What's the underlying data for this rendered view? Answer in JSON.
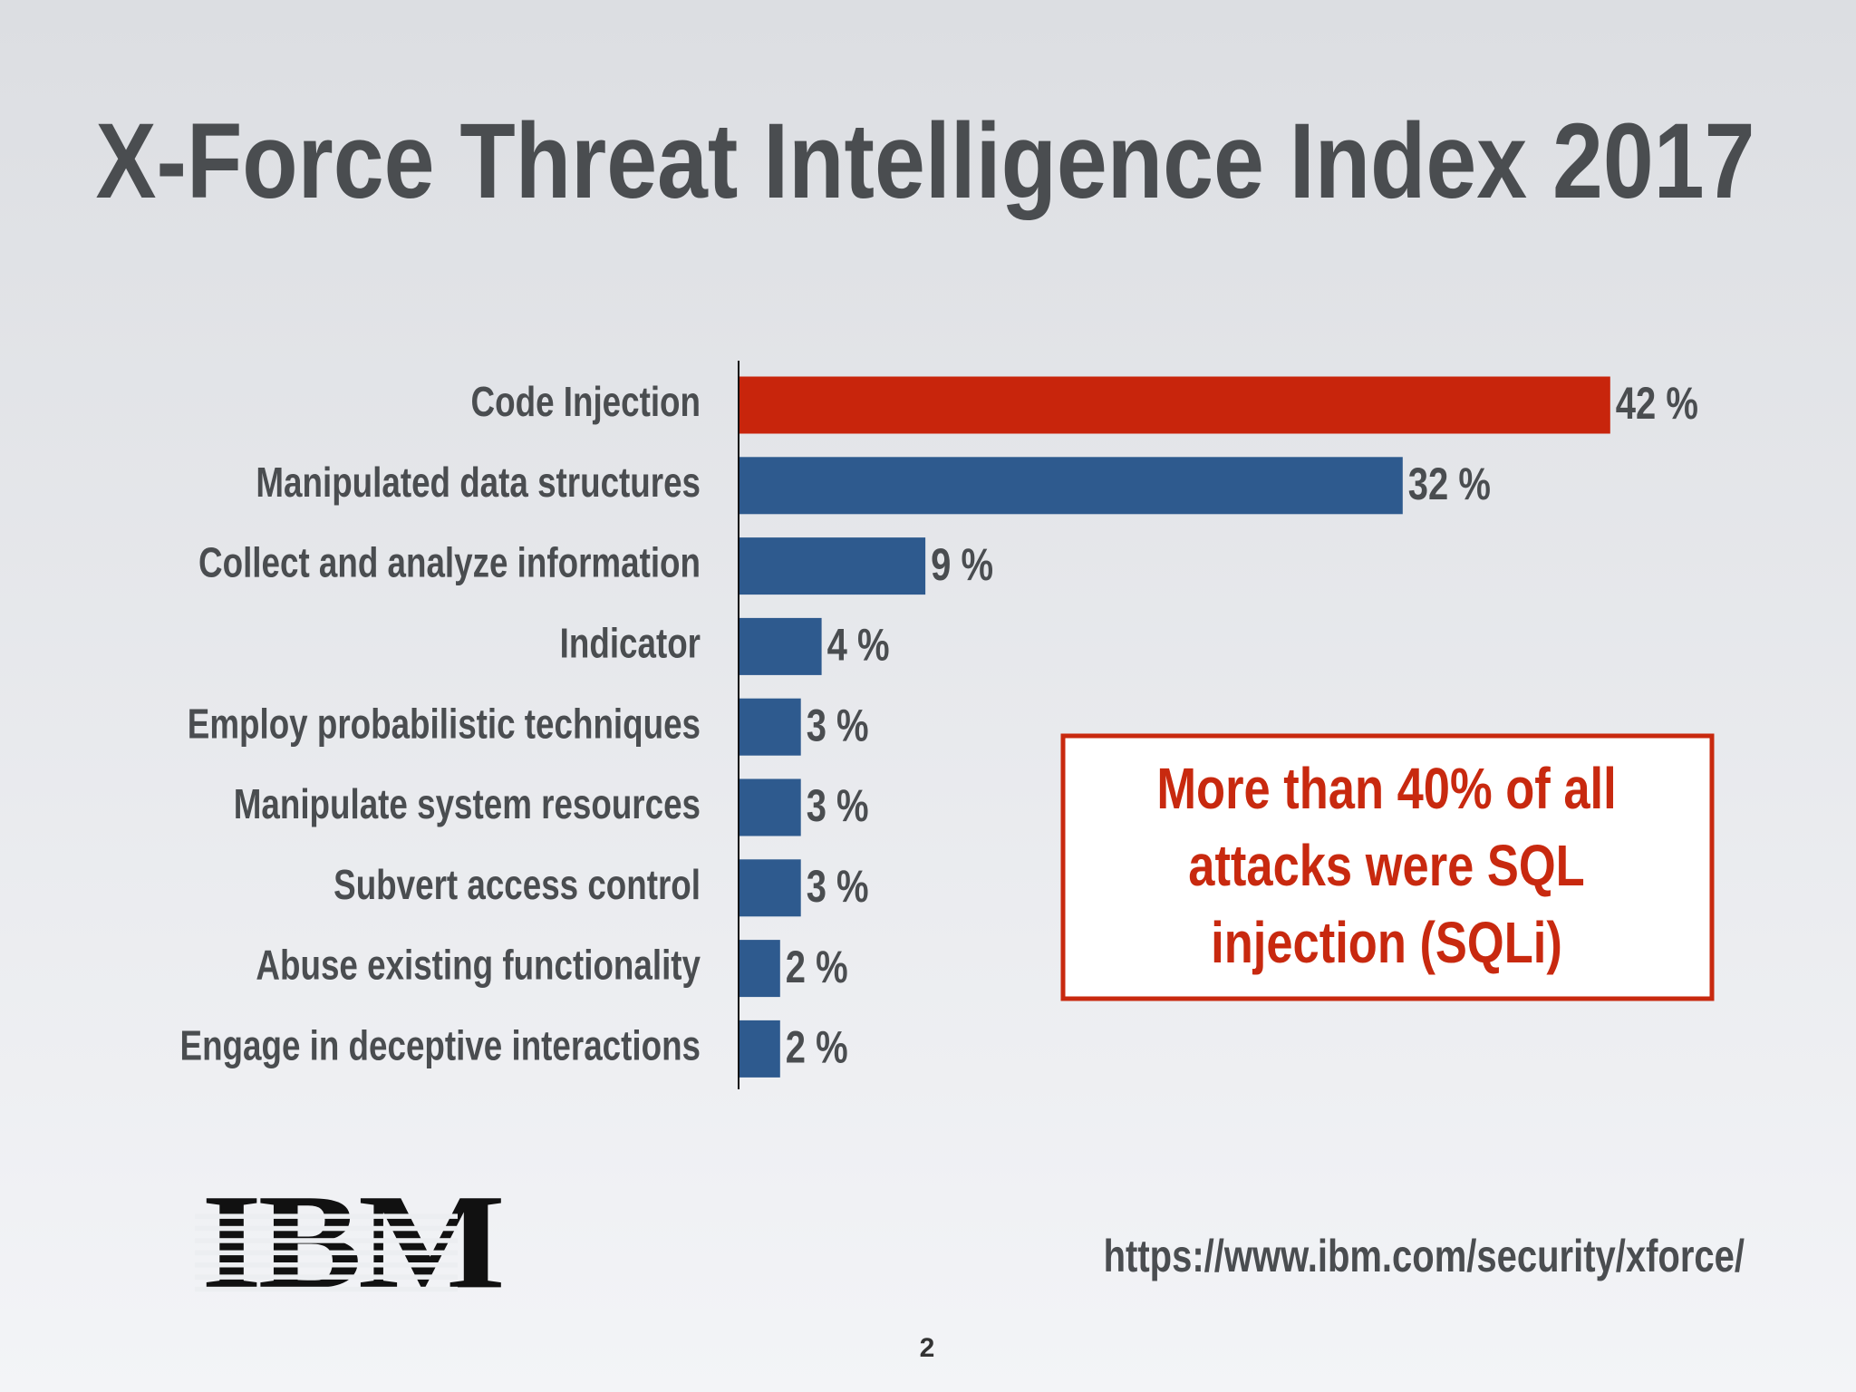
{
  "chart_data": {
    "type": "hbar",
    "title": "X-Force Threat Intelligence Index 2017",
    "categories": [
      "Code Injection",
      "Manipulated data structures",
      "Collect and analyze information",
      "Indicator",
      "Employ probabilistic techniques",
      "Manipulate system resources",
      "Subvert access control",
      "Abuse existing functionality",
      "Engage in deceptive interactions"
    ],
    "values": [
      42,
      32,
      9,
      4,
      3,
      3,
      3,
      2,
      2
    ],
    "value_labels": [
      "42 %",
      "32 %",
      "9 %",
      "4 %",
      "3 %",
      "3 %",
      "3 %",
      "2 %",
      "2 %"
    ],
    "colors": [
      "#c8250c",
      "#2e5a8e",
      "#2e5a8e",
      "#2e5a8e",
      "#2e5a8e",
      "#2e5a8e",
      "#2e5a8e",
      "#2e5a8e",
      "#2e5a8e"
    ],
    "xlim": [
      0,
      50
    ],
    "annotation": [
      "More than 40% of all",
      "attacks were SQL",
      "injection (SQLi)"
    ]
  },
  "footer": {
    "logo": "IBM",
    "url": "https://www.ibm.com/security/xforce/",
    "page": "2"
  }
}
